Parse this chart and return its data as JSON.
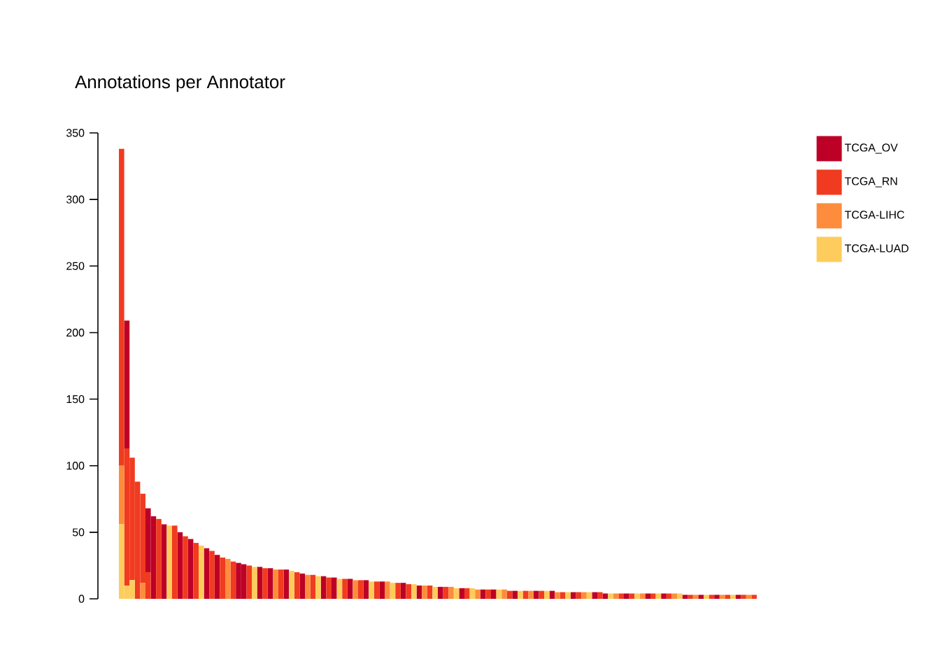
{
  "chart_data": {
    "type": "bar",
    "title": "Annotations per Annotator",
    "stacked": true,
    "legend": "top right",
    "grid": false,
    "categories": [
      null,
      null,
      null,
      null,
      null,
      null,
      null,
      null,
      null,
      null,
      null,
      null,
      null,
      null,
      null,
      null,
      null,
      null,
      null,
      null,
      null,
      null,
      null,
      null,
      null,
      null,
      null,
      null,
      null,
      null,
      null,
      null,
      null,
      null,
      null,
      null,
      null,
      null,
      null,
      null,
      null,
      null,
      null,
      null,
      null,
      null,
      null,
      null,
      null,
      null,
      null,
      null,
      null,
      null,
      null,
      null,
      null,
      null,
      null,
      null,
      null,
      null,
      null,
      null,
      null,
      null,
      null,
      null,
      null,
      null,
      null,
      null,
      null,
      null,
      null,
      null,
      null,
      null,
      null,
      null,
      null,
      null,
      null,
      null,
      null,
      null,
      null,
      null,
      null,
      null,
      null,
      null,
      null,
      null,
      null,
      null,
      null,
      null,
      null,
      null,
      null,
      null,
      null,
      null,
      null,
      null,
      null,
      null,
      null,
      null,
      null,
      null,
      null,
      null,
      null,
      null,
      null,
      null,
      null,
      null
    ],
    "ylim": [
      0,
      350
    ],
    "yticks": [
      0,
      50,
      100,
      150,
      200,
      250,
      300,
      350
    ],
    "series": [
      {
        "name": "TCGA-LUAD",
        "color": "#fecc5c",
        "values": [
          56,
          10,
          14,
          0,
          0,
          0,
          0,
          0,
          0,
          55,
          0,
          0,
          0,
          0,
          0,
          40,
          0,
          0,
          0,
          0,
          0,
          0,
          0,
          0,
          0,
          24,
          0,
          0,
          0,
          0,
          0,
          0,
          21,
          0,
          0,
          0,
          0,
          17,
          0,
          0,
          0,
          15,
          0,
          0,
          0,
          0,
          0,
          13,
          0,
          0,
          0,
          12,
          0,
          0,
          0,
          11,
          0,
          0,
          0,
          9,
          0,
          0,
          0,
          8,
          0,
          0,
          8,
          0,
          0,
          0,
          0,
          7,
          0,
          0,
          0,
          6,
          0,
          0,
          0,
          0,
          6,
          0,
          0,
          0,
          5,
          0,
          0,
          0,
          5,
          0,
          0,
          0,
          4,
          0,
          0,
          0,
          0,
          4,
          0,
          0,
          0,
          4,
          0,
          0,
          0,
          4,
          0,
          0,
          0,
          0,
          3,
          0,
          0,
          0,
          0,
          3,
          0,
          0,
          0,
          0
        ]
      },
      {
        "name": "TCGA-LIHC",
        "color": "#fd8d3c",
        "values": [
          44,
          0,
          0,
          0,
          12,
          0,
          0,
          0,
          0,
          0,
          0,
          0,
          0,
          0,
          0,
          0,
          0,
          0,
          0,
          0,
          30,
          0,
          0,
          0,
          0,
          0,
          0,
          0,
          0,
          22,
          0,
          0,
          0,
          0,
          0,
          18,
          0,
          0,
          0,
          0,
          0,
          0,
          0,
          0,
          14,
          0,
          0,
          0,
          0,
          0,
          13,
          0,
          0,
          0,
          0,
          0,
          0,
          10,
          0,
          0,
          0,
          0,
          9,
          0,
          0,
          0,
          0,
          7,
          0,
          0,
          0,
          0,
          7,
          0,
          0,
          0,
          0,
          6,
          0,
          0,
          0,
          0,
          5,
          0,
          0,
          0,
          0,
          5,
          0,
          0,
          0,
          0,
          0,
          4,
          0,
          0,
          0,
          0,
          4,
          0,
          0,
          0,
          0,
          0,
          4,
          0,
          0,
          0,
          3,
          0,
          0,
          0,
          0,
          3,
          0,
          0,
          0,
          0,
          3,
          0
        ]
      },
      {
        "name": "TCGA_RN",
        "color": "#f03b20",
        "values": [
          238,
          103,
          92,
          88,
          67,
          20,
          0,
          60,
          0,
          0,
          55,
          0,
          47,
          0,
          42,
          0,
          0,
          36,
          0,
          31,
          0,
          28,
          0,
          0,
          25,
          0,
          0,
          23,
          0,
          0,
          22,
          0,
          0,
          20,
          0,
          0,
          18,
          0,
          0,
          16,
          0,
          0,
          15,
          0,
          0,
          14,
          0,
          0,
          13,
          0,
          0,
          0,
          12,
          0,
          11,
          0,
          0,
          0,
          10,
          0,
          0,
          9,
          0,
          0,
          0,
          8,
          0,
          0,
          0,
          7,
          0,
          0,
          0,
          6,
          0,
          0,
          6,
          0,
          0,
          6,
          0,
          0,
          0,
          5,
          0,
          0,
          5,
          0,
          0,
          0,
          5,
          0,
          0,
          0,
          4,
          0,
          4,
          0,
          0,
          0,
          4,
          0,
          0,
          4,
          0,
          0,
          0,
          3,
          0,
          0,
          0,
          3,
          0,
          0,
          3,
          0,
          0,
          3,
          0,
          3
        ]
      },
      {
        "name": "TCGA_OV",
        "color": "#bd0026",
        "values": [
          0,
          96,
          0,
          0,
          0,
          48,
          62,
          0,
          56,
          0,
          0,
          50,
          0,
          45,
          0,
          0,
          38,
          0,
          33,
          0,
          0,
          0,
          27,
          26,
          0,
          0,
          24,
          0,
          23,
          0,
          0,
          22,
          0,
          0,
          19,
          0,
          0,
          0,
          17,
          0,
          16,
          0,
          0,
          15,
          0,
          0,
          14,
          0,
          0,
          13,
          0,
          0,
          0,
          12,
          0,
          0,
          10,
          0,
          0,
          0,
          9,
          0,
          0,
          0,
          8,
          0,
          0,
          0,
          7,
          0,
          7,
          0,
          0,
          0,
          6,
          0,
          0,
          0,
          6,
          0,
          0,
          6,
          0,
          0,
          0,
          5,
          0,
          0,
          0,
          5,
          0,
          4,
          0,
          0,
          0,
          4,
          0,
          0,
          0,
          4,
          0,
          0,
          4,
          0,
          0,
          0,
          3,
          0,
          0,
          3,
          0,
          0,
          3,
          0,
          0,
          0,
          3,
          0,
          0,
          0
        ]
      }
    ]
  }
}
